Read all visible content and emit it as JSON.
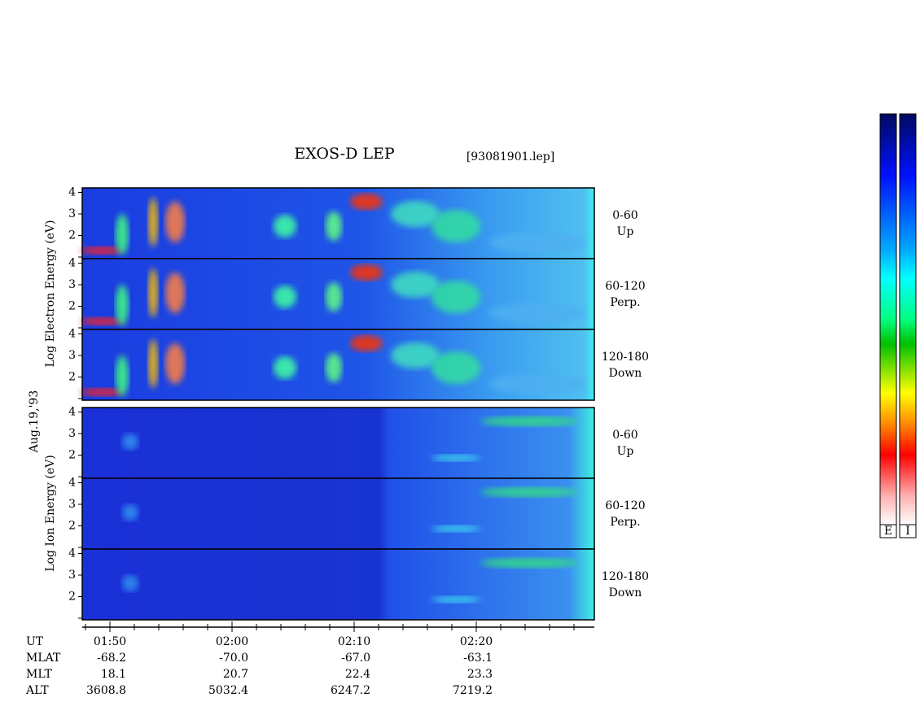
{
  "header": {
    "title": "EXOS-D LEP",
    "file": "[93081901.lep]"
  },
  "date": "Aug.19,'93",
  "axis_labels": {
    "electron": "Log Electron Energy (eV)",
    "ion": "Log Ion Energy (eV)"
  },
  "panels": [
    {
      "species": "electron",
      "angle": "0-60",
      "direction": "Up"
    },
    {
      "species": "electron",
      "angle": "60-120",
      "direction": "Perp."
    },
    {
      "species": "electron",
      "angle": "120-180",
      "direction": "Down"
    },
    {
      "species": "ion",
      "angle": "0-60",
      "direction": "Up"
    },
    {
      "species": "ion",
      "angle": "60-120",
      "direction": "Perp."
    },
    {
      "species": "ion",
      "angle": "120-180",
      "direction": "Down"
    }
  ],
  "yticks": [
    2,
    3,
    4
  ],
  "orbit": [
    {
      "name": "UT",
      "values": [
        "01:50",
        "02:00",
        "02:10",
        "02:20"
      ]
    },
    {
      "name": "MLAT",
      "values": [
        "-68.2",
        "-70.0",
        "-67.0",
        "-63.1"
      ]
    },
    {
      "name": "MLT",
      "values": [
        "18.1",
        "20.7",
        "22.4",
        "23.3"
      ]
    },
    {
      "name": "ALT",
      "values": [
        "3608.8",
        "5032.4",
        "6247.2",
        "7219.2"
      ]
    }
  ],
  "colorbars": [
    "E",
    "I"
  ]
}
